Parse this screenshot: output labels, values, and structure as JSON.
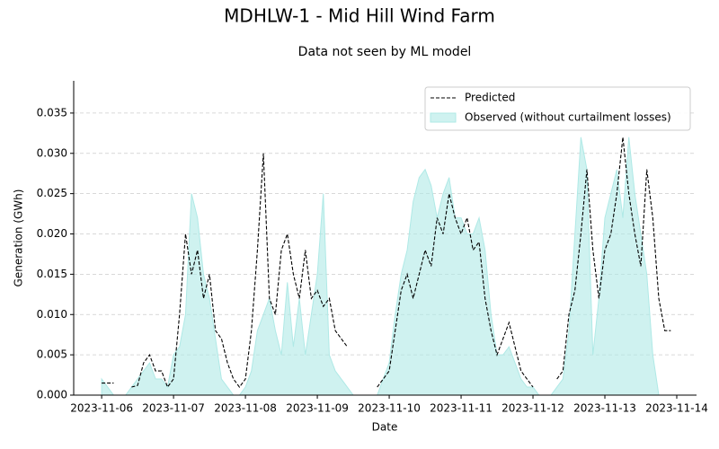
{
  "chart_data": {
    "type": "line",
    "title": "MDHLW-1 - Mid Hill Wind Farm",
    "subtitle": "Data not seen by ML model",
    "x_label": "Date",
    "y_label": "Generation (GWh)",
    "x": [
      "2023-11-06T00:00",
      "2023-11-06T02:00",
      "2023-11-06T04:00",
      "2023-11-06T06:00",
      "2023-11-06T08:00",
      "2023-11-06T10:00",
      "2023-11-06T12:00",
      "2023-11-06T14:00",
      "2023-11-06T16:00",
      "2023-11-06T18:00",
      "2023-11-06T20:00",
      "2023-11-06T22:00",
      "2023-11-07T00:00",
      "2023-11-07T02:00",
      "2023-11-07T04:00",
      "2023-11-07T06:00",
      "2023-11-07T08:00",
      "2023-11-07T10:00",
      "2023-11-07T12:00",
      "2023-11-07T14:00",
      "2023-11-07T16:00",
      "2023-11-07T18:00",
      "2023-11-07T20:00",
      "2023-11-07T22:00",
      "2023-11-08T00:00",
      "2023-11-08T02:00",
      "2023-11-08T04:00",
      "2023-11-08T06:00",
      "2023-11-08T08:00",
      "2023-11-08T10:00",
      "2023-11-08T12:00",
      "2023-11-08T14:00",
      "2023-11-08T16:00",
      "2023-11-08T18:00",
      "2023-11-08T20:00",
      "2023-11-08T22:00",
      "2023-11-09T00:00",
      "2023-11-09T02:00",
      "2023-11-09T04:00",
      "2023-11-09T06:00",
      "2023-11-09T08:00",
      "2023-11-09T10:00",
      "2023-11-09T12:00",
      "2023-11-09T14:00",
      "2023-11-09T16:00",
      "2023-11-09T18:00",
      "2023-11-09T20:00",
      "2023-11-09T22:00",
      "2023-11-10T00:00",
      "2023-11-10T02:00",
      "2023-11-10T04:00",
      "2023-11-10T06:00",
      "2023-11-10T08:00",
      "2023-11-10T10:00",
      "2023-11-10T12:00",
      "2023-11-10T14:00",
      "2023-11-10T16:00",
      "2023-11-10T18:00",
      "2023-11-10T20:00",
      "2023-11-10T22:00",
      "2023-11-11T00:00",
      "2023-11-11T02:00",
      "2023-11-11T04:00",
      "2023-11-11T06:00",
      "2023-11-11T08:00",
      "2023-11-11T10:00",
      "2023-11-11T12:00",
      "2023-11-11T14:00",
      "2023-11-11T16:00",
      "2023-11-11T18:00",
      "2023-11-11T20:00",
      "2023-11-11T22:00",
      "2023-11-12T00:00",
      "2023-11-12T02:00",
      "2023-11-12T04:00",
      "2023-11-12T06:00",
      "2023-11-12T08:00",
      "2023-11-12T10:00",
      "2023-11-12T12:00",
      "2023-11-12T14:00",
      "2023-11-12T16:00",
      "2023-11-12T18:00",
      "2023-11-12T20:00",
      "2023-11-12T22:00",
      "2023-11-13T00:00",
      "2023-11-13T02:00",
      "2023-11-13T04:00",
      "2023-11-13T06:00",
      "2023-11-13T08:00",
      "2023-11-13T10:00",
      "2023-11-13T12:00",
      "2023-11-13T14:00",
      "2023-11-13T16:00",
      "2023-11-13T18:00",
      "2023-11-13T20:00",
      "2023-11-13T22:00"
    ],
    "series": [
      {
        "name": "Predicted",
        "kind": "line",
        "line_style": "dashed",
        "color": "#000000",
        "values": [
          0.0015,
          0.0015,
          0.0015,
          null,
          null,
          0.001,
          0.0012,
          0.004,
          0.005,
          0.003,
          0.003,
          0.001,
          0.002,
          0.01,
          0.02,
          0.015,
          0.018,
          0.012,
          0.015,
          0.008,
          0.007,
          0.004,
          0.002,
          0.001,
          0.002,
          0.008,
          0.018,
          0.03,
          0.012,
          0.01,
          0.018,
          0.02,
          0.015,
          0.012,
          0.018,
          0.012,
          0.013,
          0.011,
          0.012,
          0.008,
          0.007,
          0.006,
          null,
          null,
          null,
          null,
          0.001,
          0.002,
          0.003,
          0.008,
          0.013,
          0.015,
          0.012,
          0.015,
          0.018,
          0.016,
          0.022,
          0.02,
          0.025,
          0.022,
          0.02,
          0.022,
          0.018,
          0.019,
          0.012,
          0.008,
          0.005,
          0.007,
          0.009,
          0.006,
          0.003,
          0.002,
          0.001,
          null,
          null,
          null,
          0.002,
          0.003,
          0.01,
          0.013,
          0.02,
          0.028,
          0.018,
          0.012,
          0.018,
          0.02,
          0.025,
          0.032,
          0.025,
          0.02,
          0.016,
          0.028,
          0.022,
          0.012,
          0.008,
          0.008
        ]
      },
      {
        "name": "Observed (without curtailment losses)",
        "kind": "area",
        "color": "#afe9e6",
        "values": [
          0.002,
          0.001,
          0,
          0,
          0,
          0.001,
          0.002,
          0.003,
          0.004,
          0.002,
          0.002,
          0.001,
          0.005,
          0.006,
          0.01,
          0.025,
          0.022,
          0.015,
          0.012,
          0.007,
          0.002,
          0.001,
          0,
          0,
          0.001,
          0.003,
          0.008,
          0.01,
          0.012,
          0.008,
          0.005,
          0.014,
          0.006,
          0.012,
          0.005,
          0.01,
          0.015,
          0.025,
          0.005,
          0.003,
          0.002,
          0.001,
          0,
          0,
          0,
          0,
          0,
          0.002,
          0.004,
          0.01,
          0.015,
          0.018,
          0.024,
          0.027,
          0.028,
          0.026,
          0.022,
          0.025,
          0.027,
          0.022,
          0.022,
          0.02,
          0.02,
          0.022,
          0.018,
          0.01,
          0.005,
          0.005,
          0.006,
          0.004,
          0.002,
          0.001,
          0.001,
          0,
          0,
          0,
          0.001,
          0.002,
          0.008,
          0.02,
          0.032,
          0.028,
          0.005,
          0.012,
          0.022,
          0.025,
          0.028,
          0.022,
          0.032,
          0.025,
          0.02,
          0.015,
          0.005,
          0,
          0,
          0
        ]
      }
    ],
    "xlim": [
      "2023-11-05T14:40",
      "2023-11-14T06:36"
    ],
    "xticks": [
      "2023-11-06",
      "2023-11-07",
      "2023-11-08",
      "2023-11-09",
      "2023-11-10",
      "2023-11-11",
      "2023-11-12",
      "2023-11-13",
      "2023-11-14"
    ],
    "ylim": [
      0,
      0.039
    ],
    "yticks": [
      {
        "value": 0,
        "label": "0.000"
      },
      {
        "value": 0.005,
        "label": "0.005"
      },
      {
        "value": 0.01,
        "label": "0.010"
      },
      {
        "value": 0.015,
        "label": "0.015"
      },
      {
        "value": 0.02,
        "label": "0.020"
      },
      {
        "value": 0.025,
        "label": "0.025"
      },
      {
        "value": 0.03,
        "label": "0.030"
      },
      {
        "value": 0.035,
        "label": "0.035"
      }
    ],
    "grid": true,
    "legend": "upper right"
  }
}
